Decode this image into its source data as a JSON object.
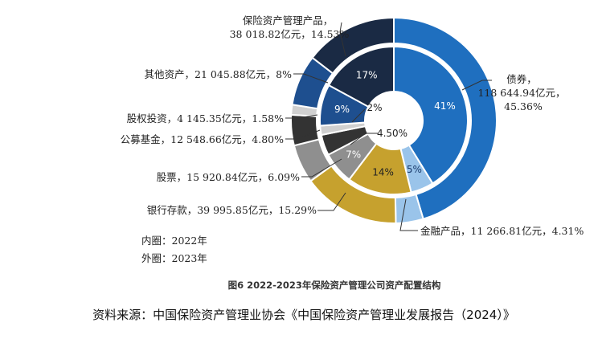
{
  "chart_data": {
    "type": "pie",
    "title": "图6 2022-2023年保险资产管理公司资产配置结构",
    "inner_ring_label": "内圈：2022年",
    "outer_ring_label": "外圈：2023年",
    "outer_series": [
      {
        "name": "债券",
        "amount": "118 644.94亿元",
        "percent": 45.36,
        "color": "#1f6fbf"
      },
      {
        "name": "金融产品",
        "amount": "11 266.81亿元",
        "percent": 4.31,
        "color": "#9ac4ea"
      },
      {
        "name": "银行存款",
        "amount": "39 995.85亿元",
        "percent": 15.29,
        "color": "#c6a12e"
      },
      {
        "name": "股票",
        "amount": "15 920.84亿元",
        "percent": 6.09,
        "color": "#8f8f8f"
      },
      {
        "name": "公募基金",
        "amount": "12 548.66亿元",
        "percent": 4.8,
        "color": "#333333"
      },
      {
        "name": "股权投资",
        "amount": "4 145.35亿元",
        "percent": 1.58,
        "color": "#d0d0d0"
      },
      {
        "name": "其他资产",
        "amount": "21 045.88亿元",
        "percent": 8,
        "color": "#1e4f8f"
      },
      {
        "name": "保险资产管理产品",
        "amount": "38 018.82亿元",
        "percent": 14.53,
        "color": "#1a2a44"
      }
    ],
    "inner_series": [
      {
        "name": "债券",
        "label": "41%",
        "percent": 41,
        "color": "#1f6fbf",
        "text_color": "#ffffff"
      },
      {
        "name": "金融产品",
        "label": "5%",
        "percent": 5,
        "color": "#9ac4ea",
        "text_color": "#1a3a6a"
      },
      {
        "name": "银行存款",
        "label": "14%",
        "percent": 14,
        "color": "#c6a12e",
        "text_color": "#222222"
      },
      {
        "name": "股票",
        "label": "7%",
        "percent": 7,
        "color": "#8f8f8f",
        "text_color": "#ffffff"
      },
      {
        "name": "公募基金",
        "label": "4.50%",
        "percent": 4.5,
        "color": "#333333",
        "text_color": "#222222"
      },
      {
        "name": "股权投资",
        "label": "2%",
        "percent": 2,
        "color": "#d0d0d0",
        "text_color": "#222222"
      },
      {
        "name": "其他资产",
        "label": "9%",
        "percent": 9,
        "color": "#1e4f8f",
        "text_color": "#ffffff"
      },
      {
        "name": "保险资产管理产品",
        "label": "17%",
        "percent": 17,
        "color": "#1a2a44",
        "text_color": "#ffffff"
      }
    ]
  },
  "labels": {
    "bond": [
      "债券，",
      "118 644.94亿元，",
      "45.36%"
    ],
    "financial": "金融产品，11 266.81亿元，4.31%",
    "deposit": "银行存款，39 995.85亿元，15.29%",
    "stock": "股票，15 920.84亿元，6.09%",
    "fund": "公募基金，12 548.66亿元，4.80%",
    "equity": "股权投资，4 145.35亿元，1.58%",
    "other": "其他资产，21 045.88亿元，8%",
    "amp": [
      "保险资产管理产品，",
      "38 018.82亿元，14.53%"
    ]
  },
  "source_text": "资料来源：中国保险资产管理业协会《中国保险资产管理业发展报告（2024）》"
}
